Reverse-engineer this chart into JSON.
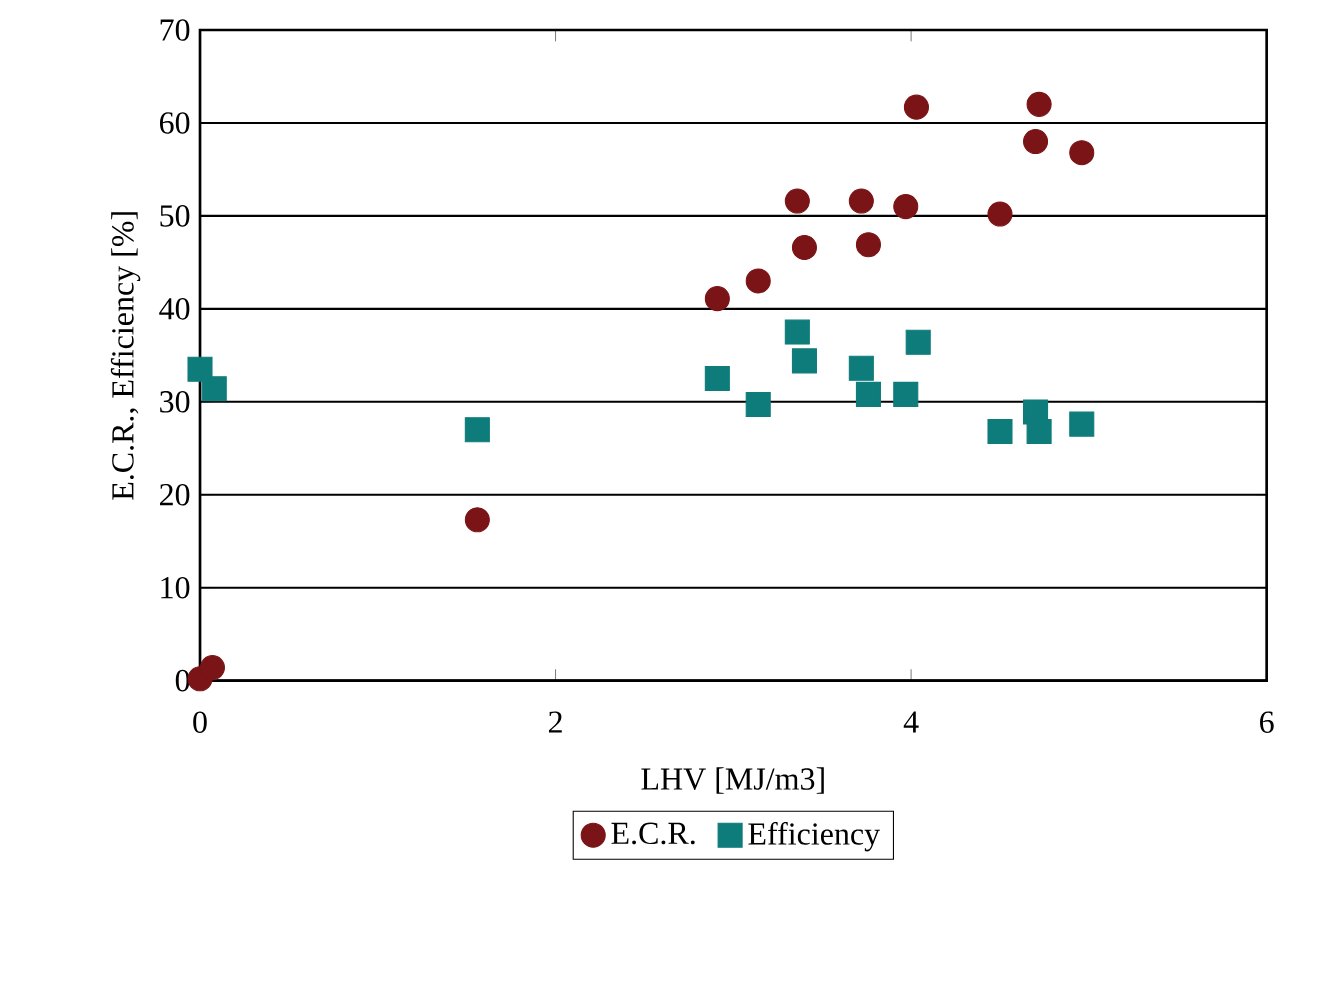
{
  "chart_data": {
    "type": "scatter",
    "xlabel": "LHV [MJ/m3]",
    "ylabel": "E.C.R., Efficiency [%]",
    "xlim": [
      0,
      6
    ],
    "xticks": [
      0,
      2,
      4,
      6
    ],
    "ylim": [
      0,
      70
    ],
    "yticks": [
      0,
      10,
      20,
      30,
      40,
      50,
      60,
      70
    ],
    "grid": "y",
    "legend": "bottom",
    "series": [
      {
        "name": "E.C.R.",
        "color": "#7b1416",
        "marker": "circle",
        "x": [
          0,
          0.07,
          1.56,
          2.91,
          3.14,
          3.36,
          3.4,
          3.72,
          3.76,
          3.97,
          4.03,
          4.5,
          4.7,
          4.72,
          4.96
        ],
        "values": [
          0.2,
          1.4,
          17.3,
          41.1,
          43.0,
          51.6,
          46.6,
          51.6,
          46.9,
          51.0,
          61.7,
          50.2,
          58.0,
          62.0,
          56.8
        ]
      },
      {
        "name": "Efficiency",
        "color": "#0e7c7b",
        "marker": "square",
        "x": [
          0,
          0.08,
          1.56,
          2.91,
          3.14,
          3.36,
          3.4,
          3.72,
          3.76,
          3.97,
          4.04,
          4.5,
          4.7,
          4.72,
          4.96
        ],
        "values": [
          33.5,
          31.4,
          27.0,
          32.5,
          29.7,
          37.5,
          34.4,
          33.6,
          30.8,
          30.8,
          36.4,
          26.8,
          28.9,
          26.8,
          27.6
        ]
      }
    ]
  }
}
